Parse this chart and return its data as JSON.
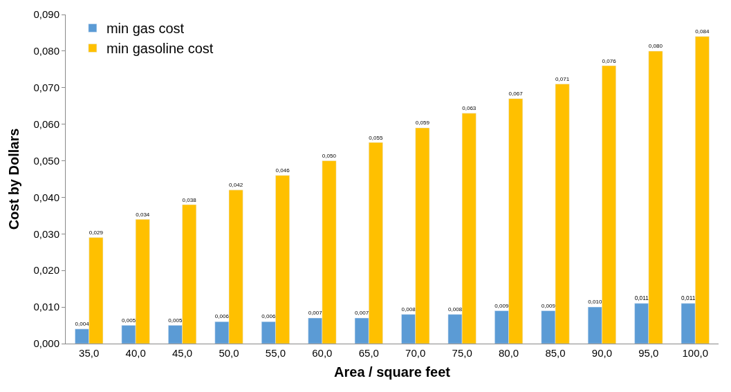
{
  "chart_data": {
    "type": "bar",
    "xlabel": "Area / square feet",
    "ylabel": "Cost by Dollars",
    "categories": [
      "35,0",
      "40,0",
      "45,0",
      "50,0",
      "55,0",
      "60,0",
      "65,0",
      "70,0",
      "75,0",
      "80,0",
      "85,0",
      "90,0",
      "95,0",
      "100,0"
    ],
    "series": [
      {
        "name": "min gas cost",
        "color": "#5b9bd5",
        "values": [
          0.004,
          0.005,
          0.005,
          0.006,
          0.006,
          0.007,
          0.007,
          0.008,
          0.008,
          0.009,
          0.009,
          0.01,
          0.011,
          0.011
        ],
        "value_labels": [
          "0,004",
          "0,005",
          "0,005",
          "0,006",
          "0,006",
          "0,007",
          "0,007",
          "0,008",
          "0,008",
          "0,009",
          "0,009",
          "0,010",
          "0,011",
          "0,011"
        ]
      },
      {
        "name": "min gasoline cost",
        "color": "#ffc000",
        "values": [
          0.029,
          0.034,
          0.038,
          0.042,
          0.046,
          0.05,
          0.055,
          0.059,
          0.063,
          0.067,
          0.071,
          0.076,
          0.08,
          0.084
        ],
        "value_labels": [
          "0,029",
          "0,034",
          "0,038",
          "0,042",
          "0,046",
          "0,050",
          "0,055",
          "0,059",
          "0,063",
          "0,067",
          "0,071",
          "0,076",
          "0,080",
          "0,084"
        ]
      }
    ],
    "ylim": [
      0,
      0.09
    ],
    "yticks": [
      {
        "value": 0,
        "label": "0,000"
      },
      {
        "value": 0.01,
        "label": "0,010"
      },
      {
        "value": 0.02,
        "label": "0,020"
      },
      {
        "value": 0.03,
        "label": "0,030"
      },
      {
        "value": 0.04,
        "label": "0,040"
      },
      {
        "value": 0.05,
        "label": "0,050"
      },
      {
        "value": 0.06,
        "label": "0,060"
      },
      {
        "value": 0.07,
        "label": "0,070"
      },
      {
        "value": 0.08,
        "label": "0,080"
      },
      {
        "value": 0.09,
        "label": "0,090"
      }
    ],
    "legend": "top left"
  }
}
